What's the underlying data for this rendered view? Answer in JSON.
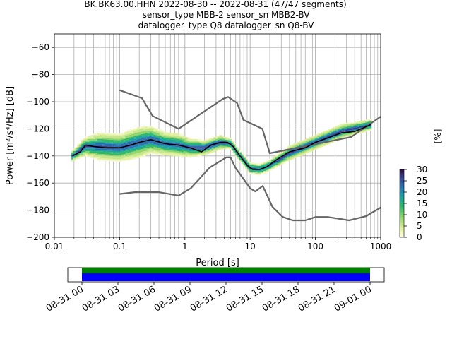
{
  "chart_data": [
    {
      "type": "heatmap",
      "title_lines": [
        "BK.BK63.00.HHN   2022-08-30 -- 2022-08-31  (47/47 segments)",
        "sensor_type MBB-2 sensor_sn MBB2-BV",
        "datalogger_type Q8 datalogger_sn Q8-BV"
      ],
      "xlabel": "Period [s]",
      "ylabel": "Power [m²/s⁴/Hz] [dB]",
      "xscale": "log",
      "xlim": [
        0.01,
        1000
      ],
      "ylim": [
        -200,
        -50
      ],
      "grid": true,
      "x_ticks": [
        0.01,
        0.1,
        1,
        10,
        100,
        1000
      ],
      "x_tick_labels": [
        "0.01",
        "0.1",
        "1",
        "10",
        "100",
        "1000"
      ],
      "y_ticks": [
        -200,
        -180,
        -160,
        -140,
        -120,
        -100,
        -80,
        -60
      ],
      "y_tick_labels": [
        "−200",
        "−180",
        "−160",
        "−140",
        "−120",
        "−100",
        "−80",
        "−60"
      ],
      "colorbar": {
        "label": "[%]",
        "range": [
          0,
          30
        ],
        "ticks": [
          "0",
          "5",
          "10",
          "15",
          "20",
          "25",
          "30"
        ],
        "colormap": "pqlx"
      },
      "series": [
        {
          "role": "mode",
          "color": "#000000",
          "x": [
            0.019,
            0.025,
            0.03,
            0.04,
            0.06,
            0.1,
            0.15,
            0.2,
            0.3,
            0.5,
            0.8,
            1.2,
            1.8,
            2.5,
            3.5,
            4.5,
            5.5,
            7,
            9,
            11,
            14,
            18,
            25,
            40,
            70,
            100,
            150,
            250,
            400,
            700
          ],
          "y": [
            -140,
            -137,
            -132,
            -133,
            -134,
            -134,
            -132,
            -130,
            -128,
            -131,
            -132,
            -134,
            -137,
            -132,
            -130,
            -130,
            -133,
            -140,
            -147,
            -150,
            -150,
            -148,
            -143,
            -137,
            -134,
            -130,
            -127,
            -123,
            -122,
            -117
          ]
        },
        {
          "role": "high-noise-model",
          "color": "#666666",
          "x": [
            0.1,
            0.22,
            0.32,
            0.8,
            3.8,
            4.6,
            6.3,
            7.9,
            15.4,
            20,
            354.8,
            1000
          ],
          "y": [
            -91.5,
            -97.4,
            -110.5,
            -120,
            -98,
            -96.5,
            -101,
            -113.5,
            -120,
            -138,
            -126,
            -111
          ]
        },
        {
          "role": "low-noise-model",
          "color": "#666666",
          "x": [
            0.1,
            0.17,
            0.4,
            0.8,
            1.24,
            2.4,
            4.3,
            5,
            6,
            10,
            12,
            15.6,
            21.9,
            31.6,
            45,
            70,
            101,
            154,
            328,
            600,
            1000
          ],
          "y": [
            -168,
            -166.7,
            -166.7,
            -169.2,
            -163.7,
            -148.6,
            -141.1,
            -141.1,
            -149,
            -163.8,
            -166.2,
            -162.1,
            -177.5,
            -185,
            -187.5,
            -187.5,
            -185,
            -185,
            -187.5,
            -184.4,
            -178
          ]
        }
      ],
      "density_band": {
        "x": [
          0.019,
          0.03,
          0.05,
          0.1,
          0.2,
          0.3,
          0.5,
          0.8,
          1.2,
          2,
          3.5,
          5,
          7,
          10,
          14,
          20,
          40,
          100,
          250,
          700
        ],
        "center": [
          -140,
          -133,
          -133,
          -134,
          -130,
          -128,
          -131,
          -132,
          -134,
          -134,
          -130,
          -131,
          -140,
          -149,
          -150,
          -147,
          -138,
          -130,
          -122,
          -117
        ],
        "spread": [
          2,
          4,
          6,
          6,
          7,
          6,
          5,
          5,
          4,
          3,
          3,
          2,
          2,
          2,
          2,
          2,
          3,
          3,
          3,
          2
        ]
      }
    },
    {
      "type": "timeline",
      "tick_labels": [
        "08-31 00",
        "08-31 03",
        "08-31 06",
        "08-31 09",
        "08-31 12",
        "08-31 15",
        "08-31 18",
        "08-31 21",
        "09-01 00"
      ],
      "coverage_colors": [
        "#008000",
        "#0000ff"
      ]
    }
  ]
}
